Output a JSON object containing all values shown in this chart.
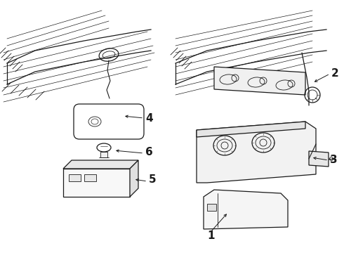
{
  "bg_color": "#ffffff",
  "line_color": "#1a1a1a",
  "label_fontsize": 11,
  "thin": 0.6,
  "med": 0.9,
  "thick": 1.2
}
